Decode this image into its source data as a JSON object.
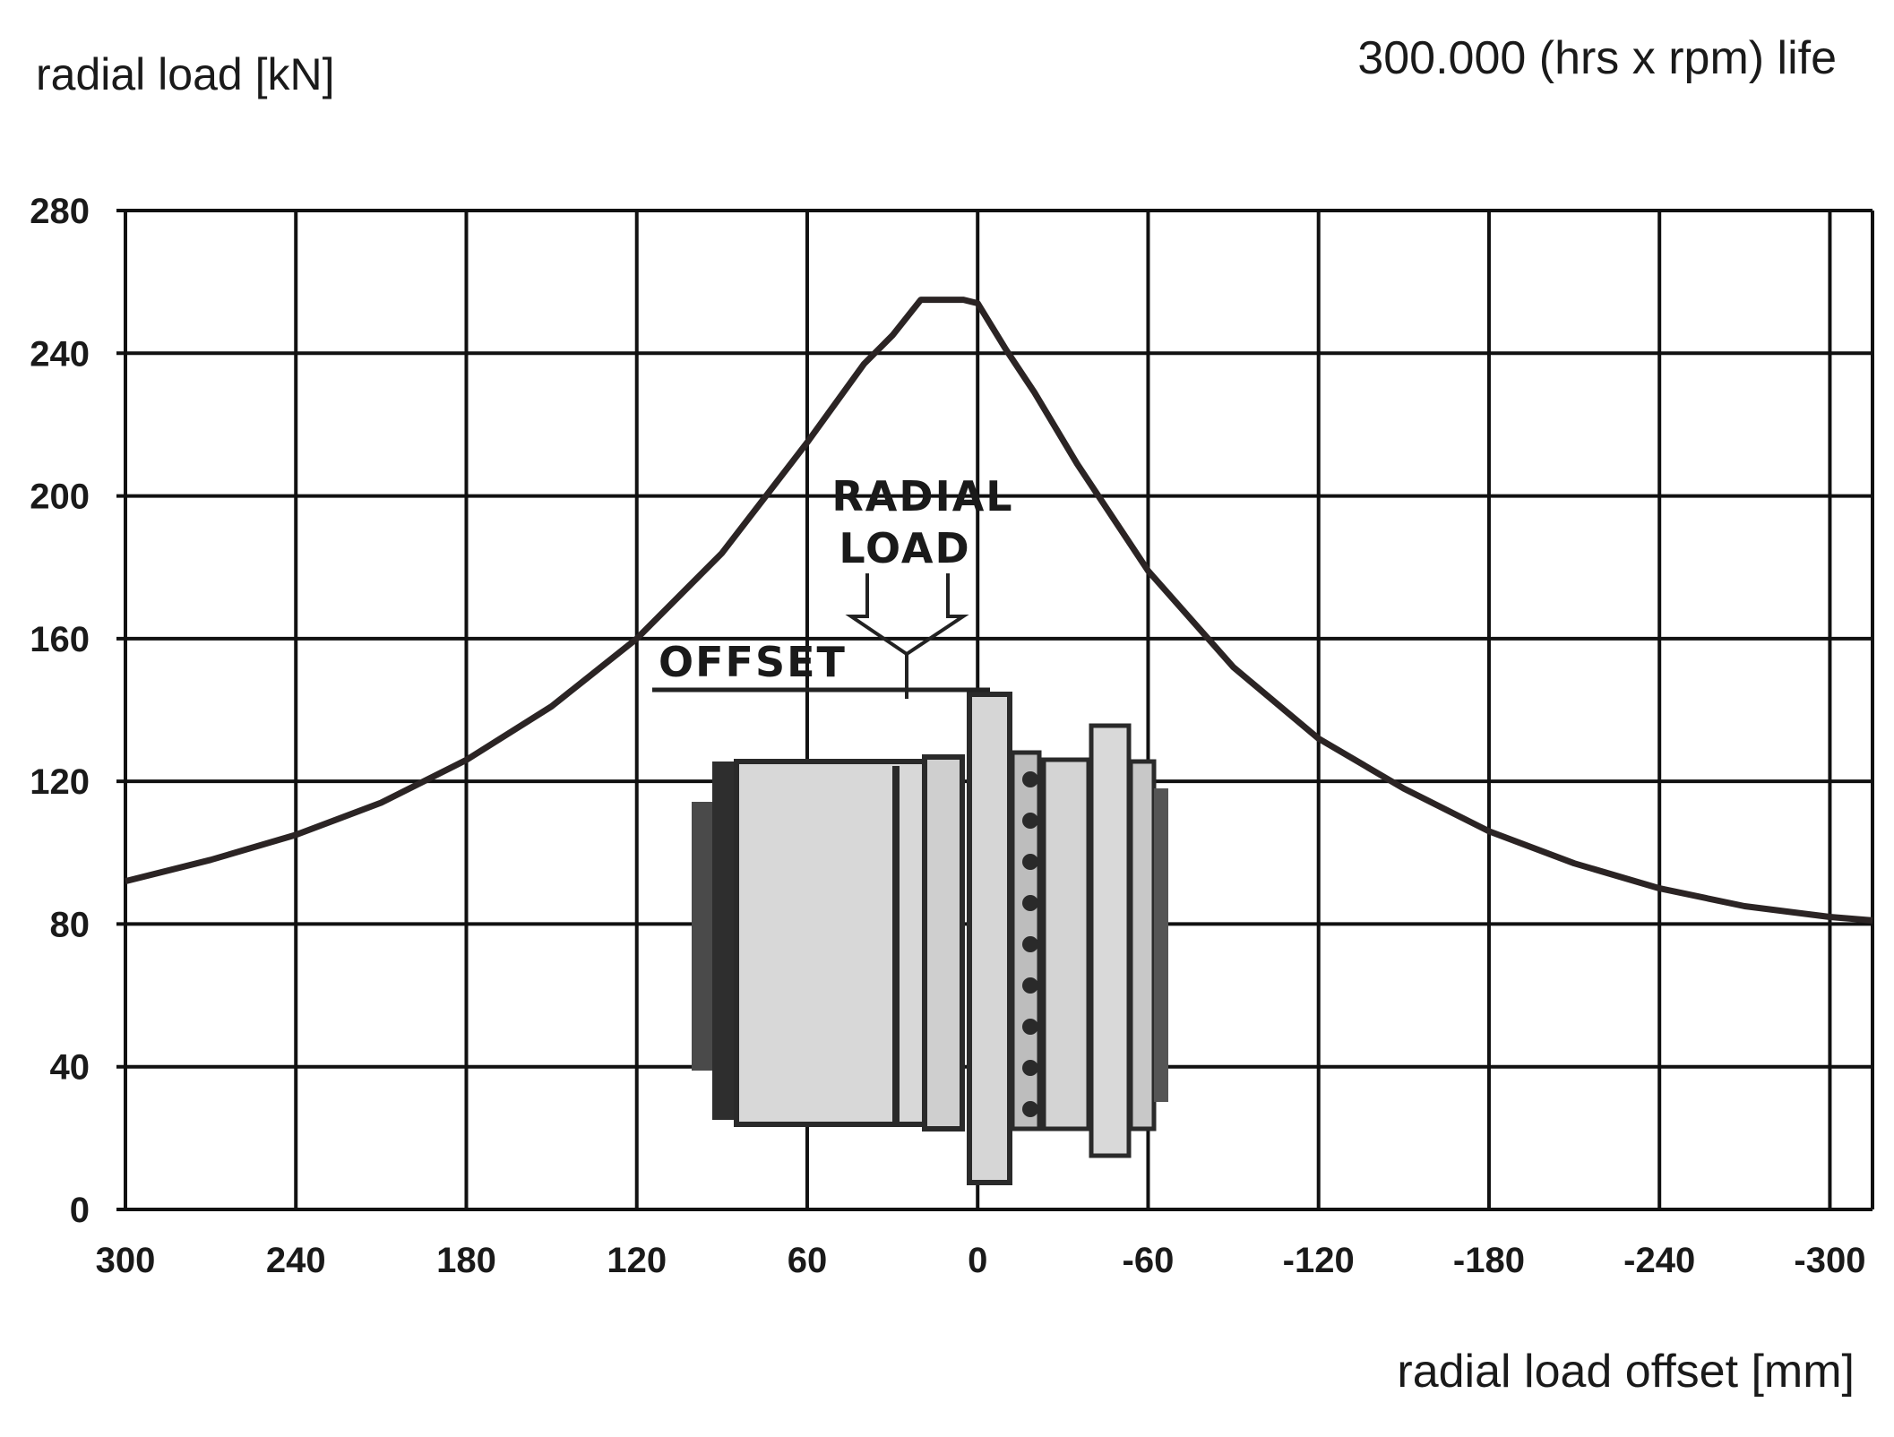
{
  "chart_data": {
    "type": "line",
    "ylabel": "radial load [kN]",
    "xlabel": "radial load offset [mm]",
    "note": "300.000 (hrs x rpm) life",
    "annotations": [
      "RADIAL",
      "LOAD",
      "OFFSET"
    ],
    "x_reversed": true,
    "xlim": [
      300,
      -315
    ],
    "ylim": [
      0,
      280
    ],
    "grid": true,
    "x_ticks": [
      300,
      240,
      180,
      120,
      60,
      0,
      -60,
      -120,
      -180,
      -240,
      -300
    ],
    "x_tick_labels": [
      "300",
      "240",
      "180",
      "120",
      "60",
      "0",
      "-60",
      "-120",
      "-180",
      "-240",
      "-300"
    ],
    "y_ticks": [
      0,
      40,
      80,
      120,
      160,
      200,
      240,
      280
    ],
    "y_tick_labels": [
      "0",
      "40",
      "80",
      "120",
      "160",
      "200",
      "240",
      "280"
    ],
    "series": [
      {
        "x": [
          300,
          270,
          240,
          210,
          180,
          150,
          120,
          90,
          60,
          40,
          30,
          20,
          5,
          0,
          -10,
          -20,
          -35,
          -60,
          -90,
          -120,
          -150,
          -180,
          -210,
          -240,
          -270,
          -300,
          -315
        ],
        "values": [
          92,
          98,
          105,
          114,
          126,
          141,
          160,
          184,
          215,
          237,
          245,
          255,
          255,
          254,
          241,
          229,
          209,
          179,
          152,
          132,
          118,
          106,
          97,
          90,
          85,
          82,
          81
        ]
      }
    ],
    "colors": {
      "curve": "#2b2424",
      "grid": "#111111",
      "gearbox_body": "#d9d9d9",
      "gearbox_dark": "#2a2a2a"
    }
  }
}
